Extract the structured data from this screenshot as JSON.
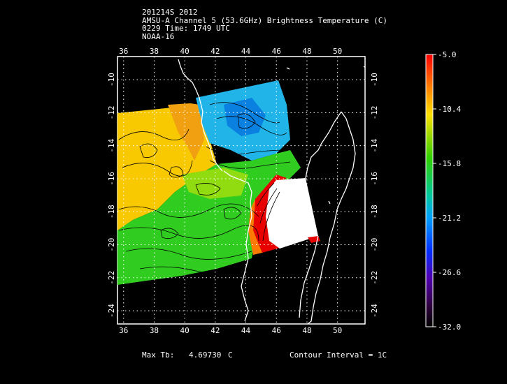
{
  "header": {
    "line1": "201214S 2012",
    "line2": "AMSU-A Channel 5 (53.6GHz) Brightness Temperature (C)",
    "line3": "0229 Time: 1749 UTC",
    "line4": "NOAA-16"
  },
  "axes": {
    "lon_labels": [
      "36",
      "38",
      "40",
      "42",
      "44",
      "46",
      "48",
      "50"
    ],
    "lon_values": [
      36,
      38,
      40,
      42,
      44,
      46,
      48,
      50
    ],
    "lat_labels": [
      "-10",
      "-12",
      "-14",
      "-16",
      "-18",
      "-20",
      "-22",
      "-24"
    ],
    "lat_values": [
      -10,
      -12,
      -14,
      -16,
      -18,
      -20,
      -22,
      -24
    ],
    "lon_range": [
      35.6,
      51.8
    ],
    "lat_range": [
      -8.6,
      -24.8
    ]
  },
  "colorbar": {
    "labels": [
      "-5.0",
      "-10.4",
      "-15.8",
      "-21.2",
      "-26.6",
      "-32.0"
    ],
    "values": [
      -5.0,
      -10.4,
      -15.8,
      -21.2,
      -26.6,
      -32.0
    ],
    "colors": [
      "#ff0000",
      "#ff8c00",
      "#ffd000",
      "#a8e000",
      "#00d040",
      "#00c8c8",
      "#0060ff",
      "#3000c0",
      "#600080",
      "#000000"
    ]
  },
  "footer": {
    "max_label": "Max Tb:",
    "max_value": "4.69730",
    "max_unit": "C",
    "contour": "Contour Interval = 1C"
  }
}
